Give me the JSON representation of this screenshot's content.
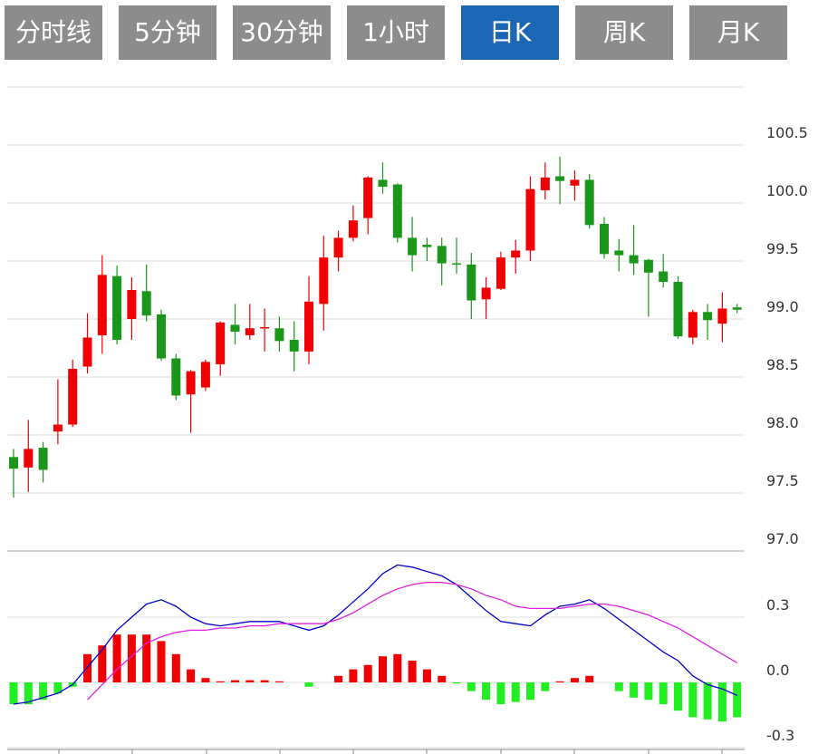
{
  "tabs": [
    {
      "label": "分时线"
    },
    {
      "label": "5分钟"
    },
    {
      "label": "30分钟"
    },
    {
      "label": "1小时"
    },
    {
      "label": "日K",
      "active": true
    },
    {
      "label": "周K"
    },
    {
      "label": "月K"
    }
  ],
  "chart_data": [
    {
      "type": "candlestick",
      "up_color": "#f00000",
      "down_color": "#1a961a",
      "ylim": [
        97,
        101
      ],
      "yticks": [
        {
          "value": 97,
          "label": "97.0"
        },
        97.5,
        {
          "value": 98,
          "label": "98.0"
        },
        98.5,
        {
          "value": 99,
          "label": "99.0"
        },
        99.5,
        {
          "value": 100,
          "label": "100.0"
        },
        100.5
      ],
      "grid": true,
      "open": [
        97.81,
        97.72,
        97.89,
        98.03,
        98.09,
        98.59,
        98.86,
        99.37,
        99.0,
        99.24,
        99.04,
        98.66,
        98.35,
        98.41,
        98.61,
        98.95,
        98.86,
        98.92,
        98.92,
        98.82,
        98.72,
        99.13,
        99.53,
        99.7,
        99.87,
        100.2,
        100.16,
        99.7,
        99.64,
        99.63,
        99.48,
        99.47,
        99.17,
        99.26,
        99.53,
        99.59,
        100.11,
        100.23,
        100.15,
        100.2,
        99.82,
        99.59,
        99.55,
        99.51,
        99.41,
        99.32,
        98.84,
        99.06,
        98.96,
        99.1
      ],
      "high": [
        97.88,
        98.13,
        97.94,
        98.48,
        98.65,
        99.05,
        99.55,
        99.46,
        99.36,
        99.47,
        99.08,
        98.7,
        98.56,
        98.65,
        98.98,
        99.13,
        99.13,
        99.09,
        99.02,
        98.98,
        99.37,
        99.72,
        99.76,
        99.98,
        100.23,
        100.35,
        100.17,
        99.88,
        99.7,
        99.7,
        99.7,
        99.57,
        99.36,
        99.58,
        99.68,
        100.23,
        100.35,
        100.4,
        100.28,
        100.25,
        99.88,
        99.69,
        99.81,
        99.52,
        99.56,
        99.37,
        99.08,
        99.13,
        99.23,
        99.13
      ],
      "low": [
        97.46,
        97.51,
        97.59,
        97.92,
        98.07,
        98.53,
        98.7,
        98.78,
        98.82,
        98.98,
        98.64,
        98.3,
        98.02,
        98.38,
        98.51,
        98.78,
        98.82,
        98.72,
        98.72,
        98.55,
        98.61,
        98.9,
        99.41,
        99.67,
        99.73,
        100.08,
        99.66,
        99.41,
        99.5,
        99.29,
        99.39,
        99.0,
        99.0,
        99.25,
        99.39,
        99.5,
        100.03,
        99.99,
        100.02,
        99.78,
        99.52,
        99.41,
        99.38,
        99.02,
        99.27,
        98.83,
        98.78,
        98.82,
        98.8,
        99.05
      ],
      "close": [
        97.71,
        97.88,
        97.7,
        98.09,
        98.57,
        98.84,
        99.38,
        98.82,
        99.25,
        99.03,
        98.66,
        98.34,
        98.55,
        98.63,
        98.97,
        98.89,
        98.92,
        98.93,
        98.81,
        98.72,
        99.15,
        99.53,
        99.7,
        99.85,
        100.22,
        100.14,
        99.7,
        99.55,
        99.62,
        99.48,
        99.47,
        99.16,
        99.27,
        99.53,
        99.59,
        100.12,
        100.22,
        100.19,
        100.2,
        99.81,
        99.56,
        99.55,
        99.48,
        99.4,
        99.32,
        98.85,
        99.06,
        98.99,
        99.09,
        99.08
      ]
    },
    {
      "type": "macd",
      "ylim": [
        -0.3,
        0.6
      ],
      "yticks": [
        -0.3,
        {
          "value": 0,
          "label": "0.0"
        },
        0.3
      ],
      "histogram": {
        "up_color": "#f00000",
        "down_color": "#22ee22",
        "values": [
          -0.1,
          -0.1,
          -0.08,
          -0.05,
          -0.02,
          0.13,
          0.17,
          0.22,
          0.22,
          0.22,
          0.19,
          0.13,
          0.06,
          0.02,
          0.005,
          0.01,
          0.01,
          0.01,
          0.005,
          0,
          -0.02,
          0,
          0.03,
          0.06,
          0.08,
          0.12,
          0.13,
          0.1,
          0.06,
          0.03,
          -0.005,
          -0.04,
          -0.08,
          -0.1,
          -0.09,
          -0.08,
          -0.04,
          0.005,
          0.02,
          0.03,
          0,
          -0.04,
          -0.07,
          -0.08,
          -0.1,
          -0.13,
          -0.16,
          -0.17,
          -0.18,
          -0.16
        ]
      },
      "series": [
        {
          "color": "#0000cc",
          "values": [
            -0.1,
            -0.09,
            -0.07,
            -0.05,
            -0.01,
            0.07,
            0.15,
            0.24,
            0.3,
            0.36,
            0.38,
            0.35,
            0.3,
            0.27,
            0.26,
            0.27,
            0.28,
            0.28,
            0.28,
            0.26,
            0.24,
            0.26,
            0.31,
            0.37,
            0.43,
            0.5,
            0.54,
            0.53,
            0.51,
            0.49,
            0.45,
            0.39,
            0.33,
            0.28,
            0.27,
            0.26,
            0.31,
            0.35,
            0.36,
            0.38,
            0.34,
            0.29,
            0.24,
            0.19,
            0.14,
            0.1,
            0.03,
            -0.01,
            -0.03,
            -0.06
          ]
        },
        {
          "color": "#e020e0",
          "values": [
            null,
            null,
            null,
            null,
            null,
            -0.08,
            -0.01,
            0.06,
            0.12,
            0.18,
            0.21,
            0.23,
            0.24,
            0.24,
            0.25,
            0.25,
            0.26,
            0.26,
            0.27,
            0.27,
            0.27,
            0.27,
            0.29,
            0.32,
            0.36,
            0.4,
            0.43,
            0.45,
            0.46,
            0.46,
            0.45,
            0.43,
            0.4,
            0.38,
            0.35,
            0.34,
            0.34,
            0.34,
            0.35,
            0.36,
            0.36,
            0.35,
            0.33,
            0.31,
            0.28,
            0.25,
            0.21,
            0.17,
            0.13,
            0.09
          ]
        }
      ]
    }
  ]
}
